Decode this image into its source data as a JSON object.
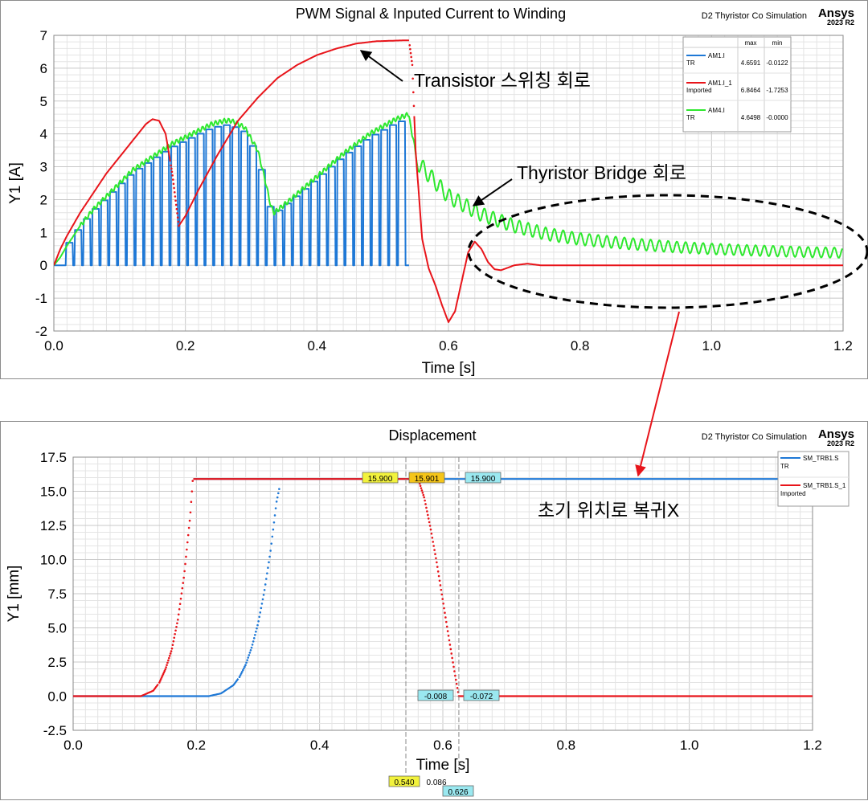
{
  "chart1": {
    "title": "PWM Signal & Inputed Current to Winding",
    "xlabel": "Time [s]",
    "ylabel": "Y1 [A]",
    "brand": "D2 Thyristor Co Simulation",
    "brand_logo": "Ansys",
    "brand_version": "2023 R2",
    "x_ticks": [
      "0.0",
      "0.2",
      "0.4",
      "0.6",
      "0.8",
      "1.0",
      "1.2"
    ],
    "y_ticks": [
      "7",
      "6",
      "5",
      "4",
      "3",
      "2",
      "1",
      "0",
      "-1",
      "-2"
    ],
    "legend": {
      "header_max": "max",
      "header_min": "min",
      "rows": [
        {
          "name": "AM1.I",
          "sub": "TR",
          "max": "4.6591",
          "min": "-0.0122",
          "color": "#1e78d6"
        },
        {
          "name": "AM1.I_1",
          "sub": "Imported",
          "max": "6.8464",
          "min": "-1.7253",
          "color": "#e8141a"
        },
        {
          "name": "AM4.I",
          "sub": "TR",
          "max": "4.6498",
          "min": "-0.0000",
          "color": "#2ee82e"
        }
      ]
    },
    "annotations": {
      "transistor": "Transistor 스위칭 회로",
      "thyristor": "Thyristor Bridge 회로"
    }
  },
  "chart2": {
    "title": "Displacement",
    "xlabel": "Time [s]",
    "ylabel": "Y1 [mm]",
    "brand": "D2 Thyristor Co Simulation",
    "brand_logo": "Ansys",
    "brand_version": "2023 R2",
    "x_ticks": [
      "0.0",
      "0.2",
      "0.4",
      "0.6",
      "0.8",
      "1.0",
      "1.2"
    ],
    "y_ticks": [
      "17.5",
      "15.0",
      "12.5",
      "10.0",
      "7.5",
      "5.0",
      "2.5",
      "0.0",
      "-2.5"
    ],
    "legend": {
      "rows": [
        {
          "name": "SM_TRB1.S",
          "sub": "TR",
          "color": "#1e78d6"
        },
        {
          "name": "SM_TRB1.S_1",
          "sub": "Imported",
          "color": "#e8141a"
        }
      ]
    },
    "annotation": "초기 위치로 복귀X",
    "markers": {
      "top": [
        "15.900",
        "15.901",
        "15.900"
      ],
      "bottom": [
        "-0.008",
        "-0.072"
      ],
      "x_left": "0.540",
      "x_delta": "0.086",
      "x_right": "0.626"
    }
  },
  "chart_data": [
    {
      "type": "line",
      "title": "PWM Signal & Inputed Current to Winding",
      "xlabel": "Time [s]",
      "ylabel": "Y1 [A]",
      "xlim": [
        0,
        1.2
      ],
      "ylim": [
        -2,
        7
      ],
      "grid": true,
      "legend_position": "top-right",
      "series": [
        {
          "name": "AM1.I",
          "color": "#1e78d6",
          "kind": "pwm",
          "t_end": 0.54,
          "period": 0.0133,
          "duty": 0.85,
          "max": 4.6591,
          "min": -0.0122
        },
        {
          "name": "AM1.I_1",
          "color": "#e8141a",
          "x": [
            0,
            0.01,
            0.02,
            0.04,
            0.06,
            0.08,
            0.1,
            0.12,
            0.14,
            0.15,
            0.16,
            0.17,
            0.18,
            0.19,
            0.2,
            0.22,
            0.25,
            0.28,
            0.31,
            0.34,
            0.37,
            0.4,
            0.43,
            0.46,
            0.49,
            0.52,
            0.54,
            0.545,
            0.55,
            0.56,
            0.57,
            0.58,
            0.59,
            0.6,
            0.61,
            0.62,
            0.63,
            0.64,
            0.65,
            0.66,
            0.67,
            0.68,
            0.7,
            0.72,
            0.74,
            0.8,
            0.9,
            1.0,
            1.1,
            1.2
          ],
          "y": [
            0,
            0.5,
            0.9,
            1.6,
            2.2,
            2.8,
            3.3,
            3.8,
            4.3,
            4.45,
            4.4,
            4.0,
            2.8,
            1.2,
            1.5,
            2.3,
            3.4,
            4.4,
            5.1,
            5.7,
            6.1,
            6.4,
            6.6,
            6.75,
            6.82,
            6.84,
            6.85,
            6.1,
            3.5,
            0.8,
            -0.1,
            -0.6,
            -1.2,
            -1.73,
            -1.4,
            -0.5,
            0.4,
            0.72,
            0.5,
            0.1,
            -0.12,
            -0.15,
            0.0,
            0.05,
            0.0,
            0.0,
            0.0,
            0.0,
            0.0,
            0.0
          ]
        },
        {
          "name": "AM4.I",
          "color": "#2ee82e",
          "x": [
            0,
            0.01,
            0.02,
            0.04,
            0.06,
            0.08,
            0.1,
            0.12,
            0.15,
            0.18,
            0.21,
            0.24,
            0.26,
            0.27,
            0.29,
            0.31,
            0.32,
            0.33,
            0.335,
            0.36,
            0.4,
            0.44,
            0.48,
            0.52,
            0.54,
            0.55,
            0.6,
            0.65,
            0.7,
            0.75,
            0.8,
            0.85,
            0.9,
            0.95,
            1.0,
            1.05,
            1.1,
            1.15,
            1.2
          ],
          "y": [
            0,
            0.25,
            0.6,
            1.2,
            1.7,
            2.1,
            2.5,
            2.9,
            3.3,
            3.7,
            4.0,
            4.3,
            4.4,
            4.4,
            4.2,
            3.5,
            2.7,
            1.8,
            1.6,
            2.0,
            2.7,
            3.4,
            4.0,
            4.45,
            4.6,
            3.2,
            2.1,
            1.55,
            1.2,
            0.95,
            0.8,
            0.7,
            0.62,
            0.55,
            0.5,
            0.46,
            0.43,
            0.4,
            0.38
          ],
          "ripple_amplitude_after": 0.25,
          "ripple_period_after": 0.0133,
          "max": 4.6498,
          "min": -0.0
        }
      ]
    },
    {
      "type": "line",
      "title": "Displacement",
      "xlabel": "Time [s]",
      "ylabel": "Y1 [mm]",
      "xlim": [
        0,
        1.2
      ],
      "ylim": [
        -2.5,
        17.5
      ],
      "grid": true,
      "legend_position": "top-right",
      "series": [
        {
          "name": "SM_TRB1.S",
          "color": "#1e78d6",
          "x": [
            0,
            0.22,
            0.24,
            0.26,
            0.27,
            0.28,
            0.29,
            0.3,
            0.31,
            0.32,
            0.33,
            0.34,
            1.2
          ],
          "y": [
            0,
            0,
            0.2,
            0.8,
            1.4,
            2.3,
            3.6,
            5.3,
            7.6,
            10.5,
            14.2,
            16.4,
            15.9
          ]
        },
        {
          "name": "SM_TRB1.S_1",
          "color": "#e8141a",
          "x": [
            0,
            0.11,
            0.13,
            0.14,
            0.15,
            0.16,
            0.17,
            0.18,
            0.19,
            0.195,
            0.54,
            0.56,
            0.57,
            0.58,
            0.59,
            0.6,
            0.61,
            0.62,
            0.626,
            1.2
          ],
          "y": [
            0,
            0,
            0.4,
            1.0,
            2.0,
            3.4,
            5.6,
            8.8,
            13.2,
            16.4,
            15.9,
            15.9,
            14.5,
            12.3,
            9.8,
            7.0,
            4.2,
            1.5,
            0.0,
            0.0
          ]
        }
      ],
      "cursors": [
        0.54,
        0.626
      ],
      "cursor_delta": 0.086
    }
  ]
}
